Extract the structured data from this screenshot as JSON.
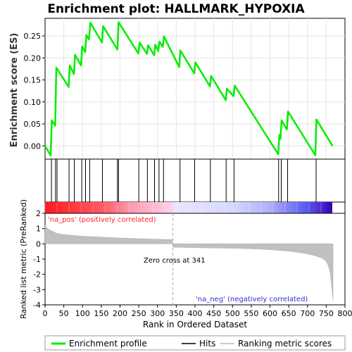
{
  "chart_data": {
    "type": "line",
    "title": "Enrichment plot: HALLMARK_HYPOXIA",
    "top_panel": {
      "ylabel": "Enrichment score (ES)",
      "yticks": [
        "0.00",
        "0.05",
        "0.10",
        "0.15",
        "0.20",
        "0.25"
      ],
      "ylim": [
        -0.03,
        0.29
      ],
      "series_name": "Enrichment profile",
      "color": "#00ee00",
      "points": [
        [
          0,
          0.0
        ],
        [
          15,
          -0.022
        ],
        [
          18,
          0.058
        ],
        [
          27,
          0.046
        ],
        [
          30,
          0.178
        ],
        [
          63,
          0.134
        ],
        [
          66,
          0.183
        ],
        [
          77,
          0.163
        ],
        [
          80,
          0.207
        ],
        [
          96,
          0.183
        ],
        [
          99,
          0.226
        ],
        [
          107,
          0.213
        ],
        [
          110,
          0.252
        ],
        [
          117,
          0.242
        ],
        [
          121,
          0.28
        ],
        [
          152,
          0.235
        ],
        [
          155,
          0.272
        ],
        [
          193,
          0.219
        ],
        [
          196,
          0.281
        ],
        [
          249,
          0.21
        ],
        [
          252,
          0.235
        ],
        [
          272,
          0.209
        ],
        [
          275,
          0.229
        ],
        [
          291,
          0.206
        ],
        [
          294,
          0.23
        ],
        [
          302,
          0.216
        ],
        [
          305,
          0.237
        ],
        [
          314,
          0.225
        ],
        [
          317,
          0.249
        ],
        [
          358,
          0.179
        ],
        [
          361,
          0.217
        ],
        [
          398,
          0.165
        ],
        [
          401,
          0.19
        ],
        [
          440,
          0.135
        ],
        [
          443,
          0.159
        ],
        [
          482,
          0.104
        ],
        [
          485,
          0.13
        ],
        [
          503,
          0.113
        ],
        [
          506,
          0.137
        ],
        [
          622,
          -0.019
        ],
        [
          625,
          0.025
        ],
        [
          628,
          0.016
        ],
        [
          631,
          0.058
        ],
        [
          645,
          0.037
        ],
        [
          648,
          0.078
        ],
        [
          721,
          -0.021
        ],
        [
          724,
          0.06
        ],
        [
          767,
          0.0
        ]
      ]
    },
    "hits": [
      17,
      28,
      32,
      64,
      78,
      98,
      108,
      119,
      153,
      193,
      196,
      250,
      273,
      292,
      304,
      316,
      360,
      399,
      441,
      483,
      504,
      623,
      630,
      647,
      723
    ],
    "ranked_panel": {
      "ylabel": "Ranked list metric (PreRanked)",
      "yticks": [
        "2",
        "1",
        "0",
        "-1",
        "-2",
        "-3",
        "-4"
      ],
      "ylim": [
        -4,
        2
      ],
      "zero_cross_label": "Zero cross at 341",
      "zero_cross": 341,
      "pos_label": "'na_pos' (positively correlated)",
      "neg_label": "'na_neg' (negatively correlated)",
      "profile": [
        [
          0,
          1.2
        ],
        [
          5,
          1.05
        ],
        [
          10,
          0.95
        ],
        [
          20,
          0.82
        ],
        [
          30,
          0.7
        ],
        [
          40,
          0.64
        ],
        [
          60,
          0.58
        ],
        [
          80,
          0.54
        ],
        [
          100,
          0.5
        ],
        [
          150,
          0.44
        ],
        [
          200,
          0.38
        ],
        [
          250,
          0.34
        ],
        [
          300,
          0.3
        ],
        [
          340,
          0.27
        ],
        [
          341,
          -0.22
        ],
        [
          400,
          -0.25
        ],
        [
          450,
          -0.27
        ],
        [
          500,
          -0.29
        ],
        [
          550,
          -0.32
        ],
        [
          600,
          -0.38
        ],
        [
          650,
          -0.48
        ],
        [
          680,
          -0.58
        ],
        [
          700,
          -0.66
        ],
        [
          720,
          -0.78
        ],
        [
          740,
          -0.95
        ],
        [
          750,
          -1.15
        ],
        [
          755,
          -1.4
        ],
        [
          760,
          -1.8
        ],
        [
          763,
          -2.4
        ],
        [
          766,
          -3.2
        ],
        [
          768,
          -3.7
        ]
      ]
    },
    "xaxis": {
      "label": "Rank in Ordered Dataset",
      "ticks": [
        0,
        50,
        100,
        150,
        200,
        250,
        300,
        350,
        400,
        450,
        500,
        550,
        600,
        650,
        700,
        750,
        800
      ],
      "xlim": [
        0,
        800
      ]
    },
    "legend": [
      {
        "label": "Enrichment profile",
        "color": "#00ee00"
      },
      {
        "label": "Hits",
        "color": "#000000"
      },
      {
        "label": "Ranking metric scores",
        "color": "#bbbbbb"
      }
    ],
    "legend_position": "bottom"
  }
}
